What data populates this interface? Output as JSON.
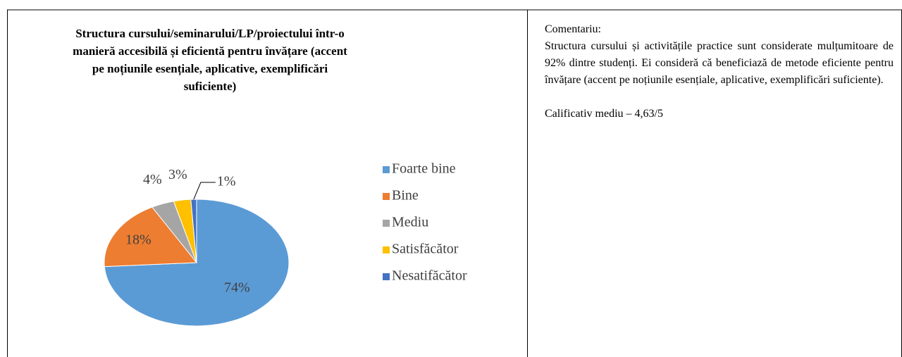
{
  "chart_data": {
    "type": "pie",
    "title": [
      "Structura cursului/seminarului/LP/proiectului într-o",
      "manieră accesibilă și eficientă pentru învățare (accent",
      "pe noțiunile esențiale, aplicative, exemplificări",
      "suficiente)"
    ],
    "categories": [
      "Foarte bine",
      "Bine",
      "Mediu",
      "Satisfăcător",
      "Nesatifăcător"
    ],
    "values": [
      74,
      18,
      4,
      3,
      1
    ],
    "value_labels": [
      "74%",
      "18%",
      "4%",
      "3%",
      "1%"
    ],
    "colors": [
      "#5b9bd5",
      "#ed7d31",
      "#a5a5a5",
      "#ffc000",
      "#4472c4"
    ],
    "legend": "right"
  },
  "comment": {
    "heading": "Comentariu:",
    "text": "Structura cursului și activitățile practice sunt considerate mulțumitoare de 92% dintre studenți. Ei consideră că beneficiază de metode eficiente pentru învățare (accent pe noțiunile esențiale, aplicative, exemplificări suficiente).",
    "rating": "Calificativ mediu – 4,63/5"
  }
}
